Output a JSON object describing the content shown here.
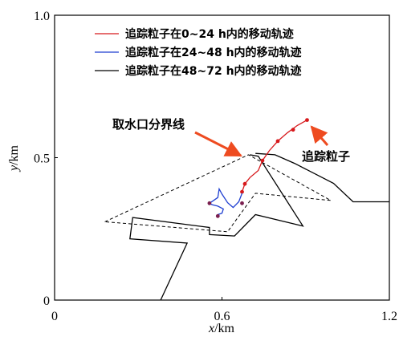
{
  "chart_data": {
    "type": "line",
    "xlabel_var": "x",
    "xlabel_unit": "/km",
    "ylabel_var": "y",
    "ylabel_unit": "/km",
    "xlim": [
      0,
      1.2
    ],
    "ylim": [
      0,
      1.0
    ],
    "x_ticks": [
      {
        "value": 0,
        "label": "0"
      },
      {
        "value": 0.6,
        "label": "0.6"
      },
      {
        "value": 1.2,
        "label": "1.2"
      }
    ],
    "y_ticks": [
      {
        "value": 0,
        "label": "0"
      },
      {
        "value": 0.5,
        "label": "0.5"
      },
      {
        "value": 1.0,
        "label": "1.0"
      }
    ],
    "grid": false,
    "legend_position": "top",
    "series": [
      {
        "name": "追踪粒子在0~24 h内的移动轨迹",
        "color": "#d7191c",
        "points": [
          [
            0.905,
            0.632
          ],
          [
            0.87,
            0.613
          ],
          [
            0.835,
            0.588
          ],
          [
            0.8,
            0.558
          ],
          [
            0.77,
            0.525
          ],
          [
            0.745,
            0.49
          ],
          [
            0.73,
            0.455
          ],
          [
            0.7,
            0.43
          ],
          [
            0.682,
            0.408
          ],
          [
            0.672,
            0.38
          ]
        ],
        "markers": [
          [
            0.905,
            0.632
          ],
          [
            0.855,
            0.598
          ],
          [
            0.8,
            0.558
          ],
          [
            0.745,
            0.49
          ],
          [
            0.682,
            0.408
          ],
          [
            0.672,
            0.38
          ]
        ]
      },
      {
        "name": "追踪粒子在24~48 h内的移动轨迹",
        "color": "#1f3fd1",
        "points": [
          [
            0.672,
            0.375
          ],
          [
            0.66,
            0.345
          ],
          [
            0.64,
            0.325
          ],
          [
            0.62,
            0.342
          ],
          [
            0.6,
            0.372
          ],
          [
            0.59,
            0.39
          ],
          [
            0.585,
            0.36
          ],
          [
            0.57,
            0.35
          ],
          [
            0.555,
            0.34
          ],
          [
            0.565,
            0.335
          ],
          [
            0.585,
            0.33
          ],
          [
            0.605,
            0.32
          ],
          [
            0.6,
            0.305
          ],
          [
            0.585,
            0.3
          ],
          [
            0.585,
            0.295
          ]
        ],
        "markers": [
          [
            0.555,
            0.34
          ],
          [
            0.585,
            0.295
          ],
          [
            0.672,
            0.34
          ]
        ]
      },
      {
        "name": "追踪粒子在48~72 h内的移动轨迹",
        "color": "#000000",
        "points": []
      }
    ],
    "boundary_lines": [
      [
        [
          0.38,
          0
        ],
        [
          0.475,
          0.2
        ],
        [
          0.27,
          0.215
        ],
        [
          0.28,
          0.29
        ],
        [
          0.555,
          0.255
        ],
        [
          0.555,
          0.23
        ],
        [
          0.645,
          0.225
        ],
        [
          0.72,
          0.3
        ],
        [
          0.89,
          0.26
        ],
        [
          0.73,
          0.505
        ],
        [
          0.7,
          0.51
        ]
      ],
      [
        [
          0.72,
          0.515
        ],
        [
          0.79,
          0.51
        ],
        [
          0.86,
          0.48
        ],
        [
          1.0,
          0.41
        ],
        [
          1.07,
          0.345
        ],
        [
          1.2,
          0.345
        ]
      ]
    ],
    "dashed_boundary": [
      [
        0.18,
        0.275
      ],
      [
        0.695,
        0.51
      ],
      [
        0.99,
        0.35
      ],
      [
        0.72,
        0.375
      ],
      [
        0.62,
        0.24
      ],
      [
        0.18,
        0.275
      ]
    ],
    "annotations": [
      {
        "text": "取水口分界线",
        "x": 0.23,
        "y": 0.64,
        "arrow_to": [
          0.665,
          0.51
        ]
      },
      {
        "text": "追踪粒子",
        "x": 0.985,
        "y": 0.485,
        "arrow_to": [
          0.92,
          0.61
        ]
      }
    ]
  }
}
